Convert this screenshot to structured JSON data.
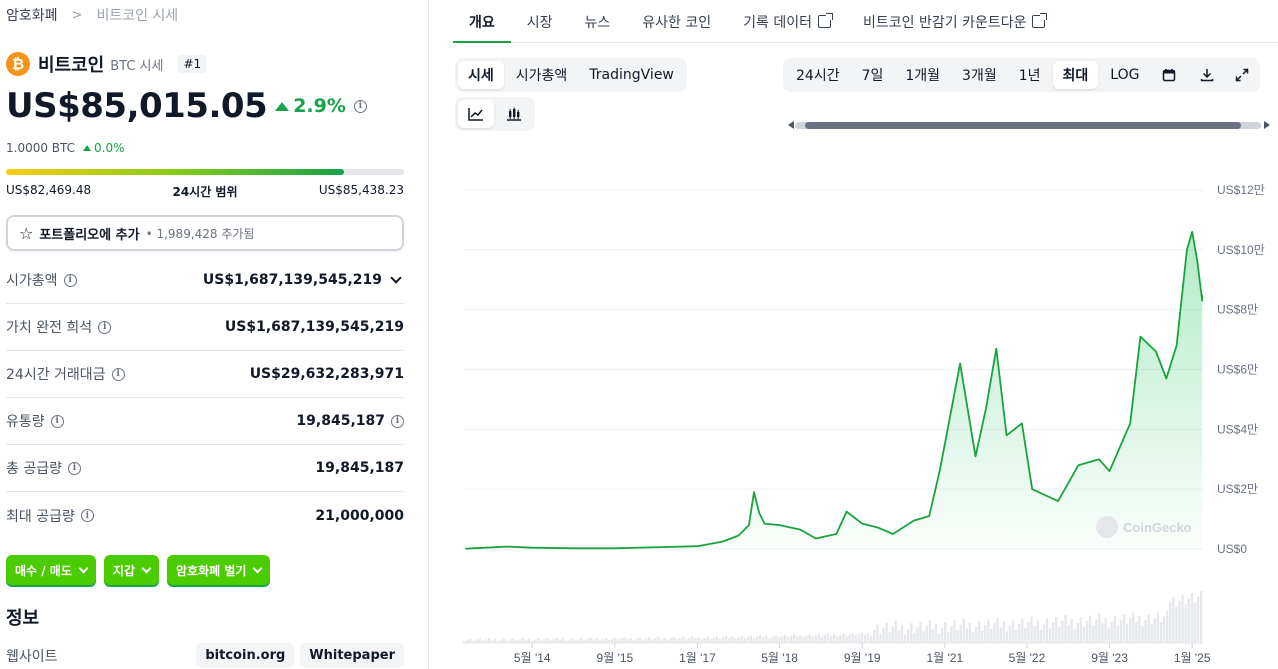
{
  "breadcrumb": {
    "root": "암호화폐",
    "separator": ">",
    "current": "비트코인 시세"
  },
  "coin": {
    "logo_glyph": "₿",
    "name": "비트코인",
    "symbol": "BTC 시세",
    "rank": "#1",
    "brand_color": "#f7931a"
  },
  "price": {
    "value": "US$85,015.05",
    "change": "2.9%",
    "btc_value": "1.0000 BTC",
    "btc_change": "0.0%"
  },
  "range_24h": {
    "low": "US$82,469.48",
    "label": "24시간 범위",
    "high": "US$85,438.23",
    "position_fraction": 0.85
  },
  "portfolio": {
    "label": "포트폴리오에 추가",
    "bullet": "•",
    "count": "1,989,428 추가됨"
  },
  "stats": [
    {
      "label": "시가총액",
      "value": "US$1,687,139,545,219"
    },
    {
      "label": "가치 완전 희석",
      "value": "US$1,687,139,545,219"
    },
    {
      "label": "24시간 거래대금",
      "value": "US$29,632,283,971"
    },
    {
      "label": "유통량",
      "value": "19,845,187"
    },
    {
      "label": "총 공급량",
      "value": "19,845,187"
    },
    {
      "label": "최대 공급량",
      "value": "21,000,000"
    }
  ],
  "actions": {
    "buy_sell": "매수 / 매도",
    "wallet": "지갑",
    "earn": "암호화폐 벌기"
  },
  "info": {
    "title": "정보",
    "website_label": "웹사이트",
    "links": [
      "bitcoin.org",
      "Whitepaper"
    ]
  },
  "tabs": [
    "개요",
    "시장",
    "뉴스",
    "유사한 코인",
    "기록 데이터",
    "비트코인 반감기 카운트다운"
  ],
  "chart_type_tabs": [
    "시세",
    "시가총액",
    "TradingView"
  ],
  "range_tabs": [
    "24시간",
    "7일",
    "1개월",
    "3개월",
    "1년",
    "최대",
    "LOG"
  ],
  "active_range": "최대",
  "colors": {
    "accent_green": "#16a34a",
    "button_green": "#4bcc00",
    "line": "#1aa33d"
  },
  "icons": {
    "info": "info-icon",
    "star": "star-icon",
    "calendar": "calendar-icon",
    "download": "download-icon",
    "expand": "expand-icon",
    "line_chart": "line-chart-icon",
    "candle_chart": "candlestick-icon",
    "external": "external-link-icon"
  },
  "chart_data": {
    "type": "area",
    "ylim": [
      0,
      120000
    ],
    "y_ticks": [
      "US$0",
      "US$2만",
      "US$4만",
      "US$6만",
      "US$8만",
      "US$10만",
      "US$12만"
    ],
    "x_ticks": [
      "5월 '14",
      "9월 '15",
      "1월 '17",
      "5월 '18",
      "9월 '19",
      "1월 '21",
      "5월 '22",
      "9월 '23",
      "1월 '25"
    ],
    "watermark": "CoinGecko",
    "series": [
      {
        "points": [
          [
            "2013-04",
            100
          ],
          [
            "2013-12",
            800
          ],
          [
            "2014-05",
            450
          ],
          [
            "2015-01",
            250
          ],
          [
            "2015-09",
            230
          ],
          [
            "2016-06",
            650
          ],
          [
            "2017-01",
            950
          ],
          [
            "2017-06",
            2500
          ],
          [
            "2017-09",
            4500
          ],
          [
            "2017-11",
            8000
          ],
          [
            "2017-12",
            19000
          ],
          [
            "2018-01",
            12000
          ],
          [
            "2018-02",
            8500
          ],
          [
            "2018-05",
            8000
          ],
          [
            "2018-09",
            6500
          ],
          [
            "2018-12",
            3500
          ],
          [
            "2019-04",
            5000
          ],
          [
            "2019-06",
            12500
          ],
          [
            "2019-09",
            8500
          ],
          [
            "2019-12",
            7200
          ],
          [
            "2020-03",
            5000
          ],
          [
            "2020-07",
            9500
          ],
          [
            "2020-10",
            11000
          ],
          [
            "2020-12",
            26000
          ],
          [
            "2021-01",
            35000
          ],
          [
            "2021-04",
            62000
          ],
          [
            "2021-07",
            31000
          ],
          [
            "2021-09",
            47000
          ],
          [
            "2021-11",
            67000
          ],
          [
            "2022-01",
            38000
          ],
          [
            "2022-04",
            42000
          ],
          [
            "2022-06",
            20000
          ],
          [
            "2022-11",
            16000
          ],
          [
            "2023-03",
            28000
          ],
          [
            "2023-07",
            30000
          ],
          [
            "2023-09",
            26000
          ],
          [
            "2024-01",
            42000
          ],
          [
            "2024-03",
            71000
          ],
          [
            "2024-06",
            66000
          ],
          [
            "2024-08",
            57000
          ],
          [
            "2024-10",
            68000
          ],
          [
            "2024-12",
            100000
          ],
          [
            "2025-01",
            106000
          ],
          [
            "2025-02",
            96000
          ],
          [
            "2025-03",
            83000
          ],
          [
            "2025-03",
            85000
          ]
        ]
      }
    ]
  }
}
